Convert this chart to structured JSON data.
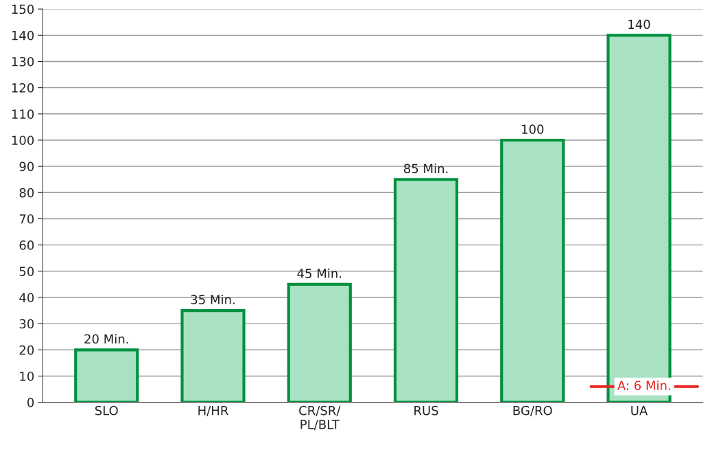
{
  "chart_data": {
    "type": "bar",
    "categories": [
      "SLO",
      "H/HR",
      "CR/SR/\nPL/BLT",
      "RUS",
      "BG/RO",
      "UA"
    ],
    "values": [
      20,
      35,
      45,
      85,
      100,
      140
    ],
    "value_labels": [
      "20 Min.",
      "35 Min.",
      "45 Min.",
      "85 Min.",
      "100",
      "140"
    ],
    "color": "#a8e2c2",
    "ylim": [
      0,
      150
    ],
    "yticks": [
      0,
      10,
      20,
      30,
      40,
      50,
      60,
      70,
      80,
      90,
      100,
      110,
      120,
      130,
      140,
      150
    ],
    "grid": "y",
    "ref_lines": [
      {
        "axis": "y",
        "value": 6,
        "label": "A: 6 Min.",
        "color": "#e8231e"
      }
    ]
  }
}
